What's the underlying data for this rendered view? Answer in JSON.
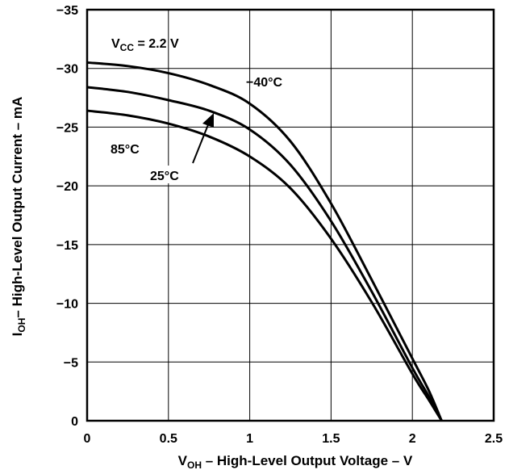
{
  "chart_data": {
    "type": "line",
    "xlim": [
      0,
      2.5
    ],
    "ylim": [
      0,
      -35
    ],
    "x_ticks": [
      "0",
      "0.5",
      "1",
      "1.5",
      "2",
      "2.5"
    ],
    "y_ticks": [
      "0",
      "−5",
      "−10",
      "−15",
      "−20",
      "−25",
      "−30",
      "−35"
    ],
    "grid": true,
    "xlabel": {
      "main": "V",
      "sub": "OH",
      "rest": " – High-Level Output Voltage – V"
    },
    "ylabel": {
      "main": "I",
      "sub": "OH",
      "rest": "– High-Level Output Current – mA"
    },
    "vcc_label": {
      "main": "V",
      "sub": "CC",
      "rest": " = 2.2 V"
    },
    "series": [
      {
        "name": "−40°C",
        "x": [
          0,
          0.25,
          0.5,
          0.75,
          1.0,
          1.25,
          1.5,
          1.75,
          2.0,
          2.1,
          2.18
        ],
        "y": [
          -30.5,
          -30.2,
          -29.6,
          -28.6,
          -27.0,
          -23.8,
          -18.5,
          -12.0,
          -5.3,
          -2.6,
          0
        ]
      },
      {
        "name": "25°C",
        "x": [
          0,
          0.25,
          0.5,
          0.75,
          1.0,
          1.25,
          1.5,
          1.75,
          2.0,
          2.1,
          2.18
        ],
        "y": [
          -28.4,
          -28.0,
          -27.3,
          -26.4,
          -24.8,
          -21.8,
          -17.0,
          -11.0,
          -4.5,
          -2.1,
          0
        ]
      },
      {
        "name": "85°C",
        "x": [
          0,
          0.25,
          0.5,
          0.75,
          1.0,
          1.25,
          1.5,
          1.75,
          2.0,
          2.1,
          2.18
        ],
        "y": [
          -26.4,
          -26.0,
          -25.3,
          -24.2,
          -22.5,
          -19.8,
          -15.5,
          -10.1,
          -4.0,
          -1.8,
          0
        ]
      }
    ]
  }
}
